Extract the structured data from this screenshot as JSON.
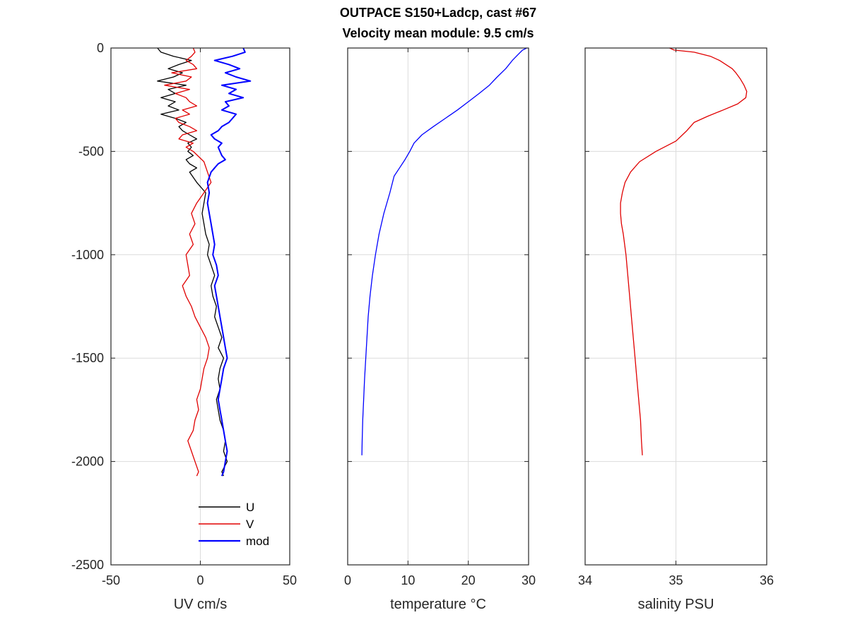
{
  "figure": {
    "title_line1": "OUTPACE S150+Ladcp, cast #67",
    "title_line2": "Velocity mean module:  9.5 cm/s"
  },
  "chart_data": [
    {
      "type": "line",
      "xlabel": "UV cm/s",
      "ylabel": "",
      "xlim": [
        -50,
        50
      ],
      "ylim": [
        -2500,
        0
      ],
      "xticks": [
        -50,
        0,
        50
      ],
      "yticks": [
        -2500,
        -2000,
        -1500,
        -1000,
        -500,
        0
      ],
      "grid": true,
      "legend_position": "bottom-right",
      "series": [
        {
          "name": "U",
          "color": "#000000",
          "y": [
            0,
            -20,
            -40,
            -60,
            -80,
            -100,
            -120,
            -140,
            -160,
            -180,
            -200,
            -220,
            -240,
            -260,
            -280,
            -300,
            -320,
            -340,
            -360,
            -380,
            -400,
            -420,
            -440,
            -460,
            -480,
            -500,
            -520,
            -540,
            -560,
            -580,
            -600,
            -650,
            -700,
            -750,
            -800,
            -850,
            -900,
            -950,
            -1000,
            -1050,
            -1100,
            -1150,
            -1200,
            -1250,
            -1300,
            -1350,
            -1400,
            -1450,
            -1500,
            -1550,
            -1600,
            -1650,
            -1700,
            -1750,
            -1800,
            -1850,
            -1900,
            -1950,
            -2000,
            -2050,
            -2070
          ],
          "x": [
            -24,
            -22,
            -15,
            -5,
            -12,
            -18,
            -10,
            -15,
            -24,
            -8,
            -18,
            -14,
            -22,
            -14,
            -18,
            -12,
            -22,
            -14,
            -8,
            -12,
            -10,
            -6,
            -2,
            -7,
            -5,
            -7,
            -4,
            -8,
            -6,
            -2,
            -6,
            -2,
            3,
            2,
            1,
            2,
            3,
            5,
            4,
            6,
            8,
            6,
            7,
            9,
            8,
            10,
            12,
            10,
            13,
            11,
            10,
            11,
            9,
            10,
            11,
            13,
            14,
            13,
            15,
            12,
            13
          ]
        },
        {
          "name": "V",
          "color": "#e00000",
          "y": [
            0,
            -20,
            -40,
            -60,
            -80,
            -100,
            -120,
            -140,
            -160,
            -180,
            -200,
            -220,
            -240,
            -260,
            -280,
            -300,
            -320,
            -340,
            -360,
            -380,
            -400,
            -420,
            -440,
            -460,
            -480,
            -500,
            -550,
            -600,
            -650,
            -700,
            -750,
            -800,
            -850,
            -900,
            -950,
            -1000,
            -1050,
            -1100,
            -1150,
            -1200,
            -1250,
            -1300,
            -1350,
            -1400,
            -1450,
            -1500,
            -1550,
            -1600,
            -1650,
            -1700,
            -1750,
            -1800,
            -1850,
            -1900,
            -1950,
            -2000,
            -2050,
            -2070
          ],
          "x": [
            -4,
            -3,
            -5,
            -8,
            -4,
            -2,
            -16,
            -5,
            -8,
            -20,
            -6,
            -14,
            -8,
            -6,
            -2,
            -10,
            -6,
            -14,
            -12,
            -6,
            -2,
            -10,
            -12,
            -4,
            -8,
            -4,
            2,
            4,
            6,
            2,
            -2,
            -5,
            -3,
            -6,
            -4,
            -8,
            -7,
            -6,
            -10,
            -8,
            -5,
            -3,
            0,
            3,
            5,
            4,
            2,
            1,
            0,
            -2,
            -1,
            -3,
            -4,
            -7,
            -5,
            -3,
            -1,
            -2
          ]
        },
        {
          "name": "mod",
          "color": "#0000ff",
          "y": [
            0,
            -20,
            -40,
            -60,
            -80,
            -100,
            -120,
            -140,
            -160,
            -180,
            -200,
            -220,
            -240,
            -260,
            -280,
            -300,
            -320,
            -340,
            -360,
            -380,
            -400,
            -420,
            -440,
            -460,
            -480,
            -500,
            -520,
            -540,
            -560,
            -580,
            -600,
            -650,
            -700,
            -750,
            -800,
            -850,
            -900,
            -950,
            -1000,
            -1050,
            -1100,
            -1150,
            -1200,
            -1250,
            -1300,
            -1350,
            -1400,
            -1450,
            -1500,
            -1550,
            -1600,
            -1650,
            -1700,
            -1750,
            -1800,
            -1850,
            -1900,
            -1950,
            -2000,
            -2050,
            -2070
          ],
          "x": [
            24,
            25,
            18,
            8,
            16,
            22,
            14,
            20,
            28,
            12,
            20,
            16,
            24,
            14,
            16,
            12,
            20,
            18,
            16,
            12,
            10,
            6,
            8,
            12,
            10,
            11,
            12,
            14,
            10,
            8,
            6,
            4,
            5,
            4,
            5,
            6,
            7,
            8,
            7,
            9,
            10,
            8,
            9,
            10,
            11,
            12,
            13,
            14,
            15,
            13,
            12,
            11,
            10,
            11,
            12,
            13,
            14,
            15,
            14,
            13,
            12
          ]
        }
      ]
    },
    {
      "type": "line",
      "xlabel": "temperature °C",
      "ylabel": "",
      "xlim": [
        0,
        30
      ],
      "ylim": [
        -2500,
        0
      ],
      "xticks": [
        0,
        10,
        20,
        30
      ],
      "yticks": [
        -2500,
        -2000,
        -1500,
        -1000,
        -500,
        0
      ],
      "grid": true,
      "series": [
        {
          "color": "#0000ff",
          "y": [
            0,
            -10,
            -30,
            -60,
            -100,
            -140,
            -180,
            -220,
            -260,
            -300,
            -340,
            -380,
            -420,
            -460,
            -500,
            -540,
            -580,
            -620,
            -700,
            -800,
            -900,
            -1000,
            -1100,
            -1200,
            -1300,
            -1400,
            -1500,
            -1600,
            -1700,
            -1800,
            -1900,
            -1970
          ],
          "x": [
            29.7,
            29.0,
            28.3,
            27.3,
            26.2,
            24.8,
            23.5,
            21.8,
            20.0,
            18.2,
            16.2,
            14.2,
            12.3,
            11.0,
            10.3,
            9.5,
            8.6,
            7.7,
            7.0,
            6.0,
            5.2,
            4.6,
            4.1,
            3.7,
            3.4,
            3.2,
            3.0,
            2.8,
            2.65,
            2.5,
            2.4,
            2.35
          ]
        }
      ]
    },
    {
      "type": "line",
      "xlabel": "salinity PSU",
      "ylabel": "",
      "xlim": [
        34,
        36
      ],
      "ylim": [
        -2500,
        0
      ],
      "xticks": [
        34,
        35,
        36
      ],
      "yticks": [
        -2500,
        -2000,
        -1500,
        -1000,
        -500,
        0
      ],
      "grid": true,
      "series": [
        {
          "color": "#e00000",
          "y": [
            0,
            -10,
            -20,
            -40,
            -60,
            -80,
            -100,
            -120,
            -150,
            -180,
            -210,
            -240,
            -270,
            -300,
            -330,
            -360,
            -400,
            -450,
            -500,
            -550,
            -600,
            -650,
            -700,
            -750,
            -800,
            -850,
            -900,
            -1000,
            -1100,
            -1200,
            -1300,
            -1400,
            -1500,
            -1600,
            -1700,
            -1800,
            -1900,
            -1970
          ],
          "x": [
            34.93,
            34.98,
            35.2,
            35.38,
            35.48,
            35.55,
            35.62,
            35.66,
            35.71,
            35.75,
            35.78,
            35.77,
            35.68,
            35.52,
            35.35,
            35.2,
            35.12,
            35.0,
            34.78,
            34.6,
            34.5,
            34.44,
            34.41,
            34.39,
            34.39,
            34.4,
            34.42,
            34.45,
            34.47,
            34.49,
            34.51,
            34.53,
            34.55,
            34.57,
            34.59,
            34.61,
            34.62,
            34.63
          ]
        }
      ]
    }
  ]
}
